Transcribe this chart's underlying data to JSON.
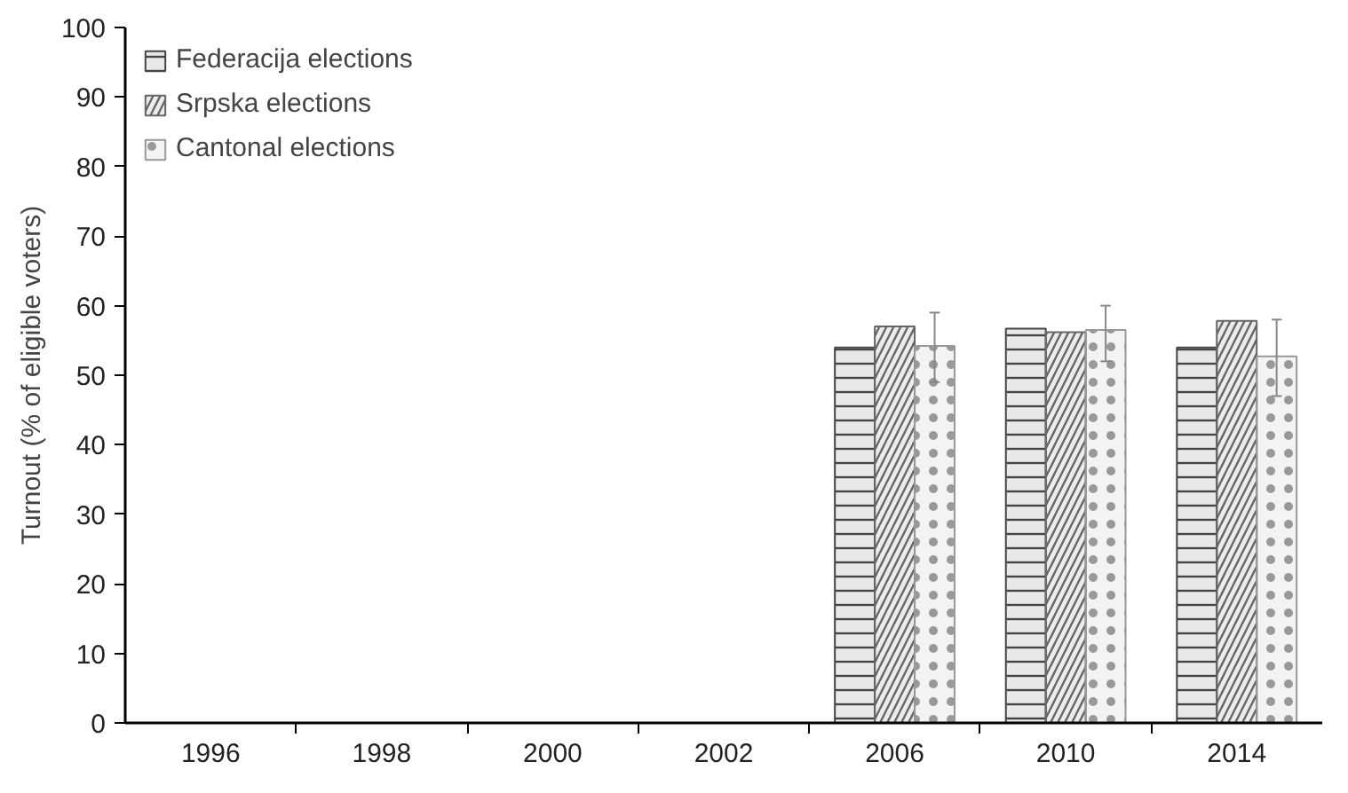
{
  "chart_data": {
    "type": "bar",
    "ylabel": "Turnout (% of eligible voters)",
    "categories": [
      "1996",
      "1998",
      "2000",
      "2002",
      "2006",
      "2010",
      "2014"
    ],
    "series": [
      {
        "name": "Federacija elections",
        "color": "#444444",
        "values": [
          null,
          null,
          null,
          null,
          54,
          56.7,
          54
        ]
      },
      {
        "name": "Srpska elections",
        "color": "#666666",
        "values": [
          null,
          null,
          null,
          null,
          57,
          56.2,
          57.8
        ]
      },
      {
        "name": "Cantonal elections",
        "color": "#999999",
        "values": [
          null,
          null,
          null,
          null,
          54.2,
          56.5,
          52.7
        ],
        "errors": [
          null,
          null,
          null,
          null,
          [
            49,
            59
          ],
          [
            52,
            60
          ],
          [
            47,
            58
          ]
        ]
      }
    ],
    "ylim": [
      0,
      100
    ],
    "yticks": [
      0,
      10,
      20,
      30,
      40,
      50,
      60,
      70,
      80,
      90,
      100
    ],
    "grid": false,
    "legend": "top left"
  }
}
